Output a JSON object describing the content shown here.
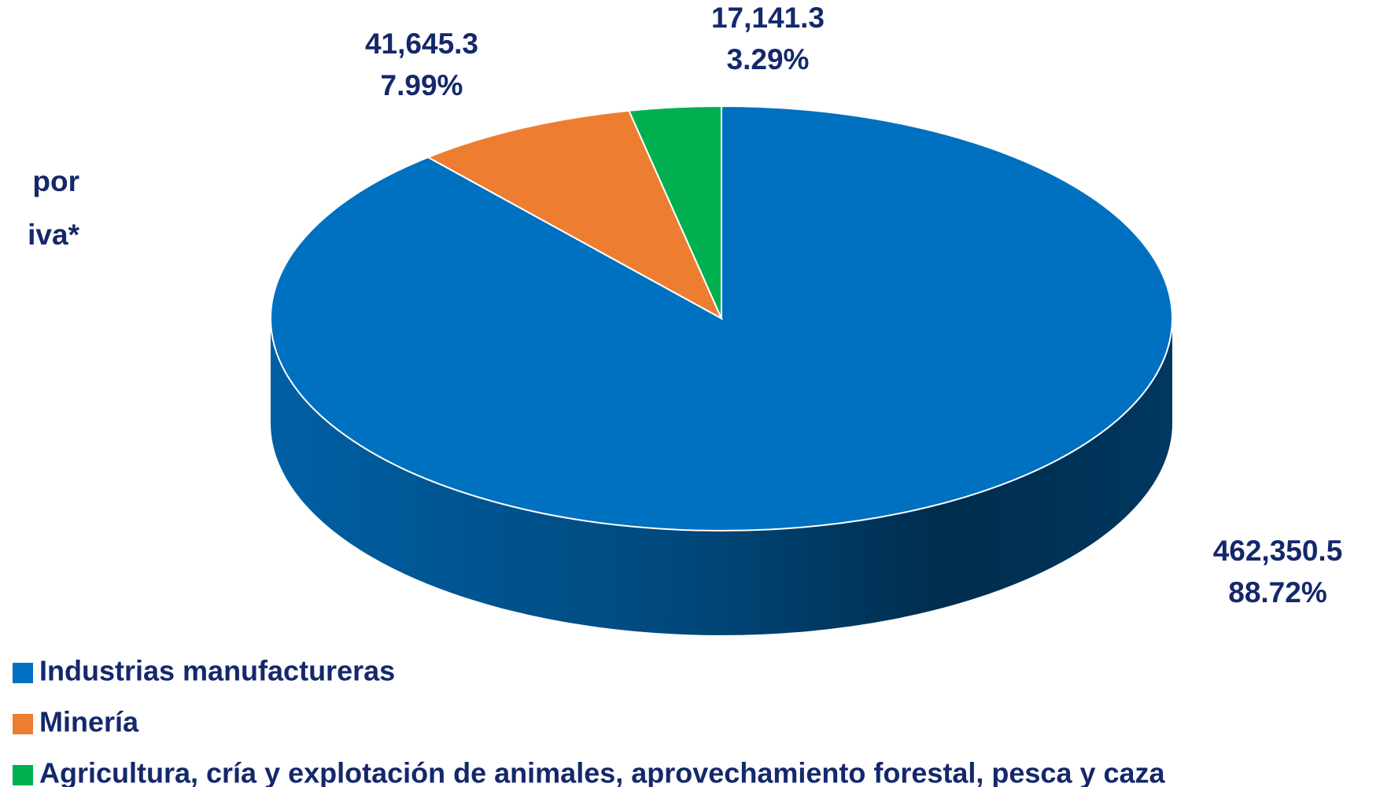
{
  "chart_data": {
    "type": "pie3d",
    "title": [
      "por",
      "iva*"
    ],
    "categories": [
      "Industrias manufactureras",
      "Minería",
      "Agricultura, cría y explotación de animales, aprovechamiento forestal, pesca y caza"
    ],
    "values": [
      462350.5,
      41645.3,
      17141.3
    ],
    "value_labels": [
      "462,350.5",
      "41,645.3",
      "17,141.3"
    ],
    "percents": [
      88.72,
      7.99,
      3.29
    ],
    "percent_labels": [
      "88.72%",
      "7.99%",
      "3.29%"
    ],
    "colors": [
      "#0070c0",
      "#ed7d31",
      "#00b050"
    ],
    "legend": "bottom-left"
  }
}
